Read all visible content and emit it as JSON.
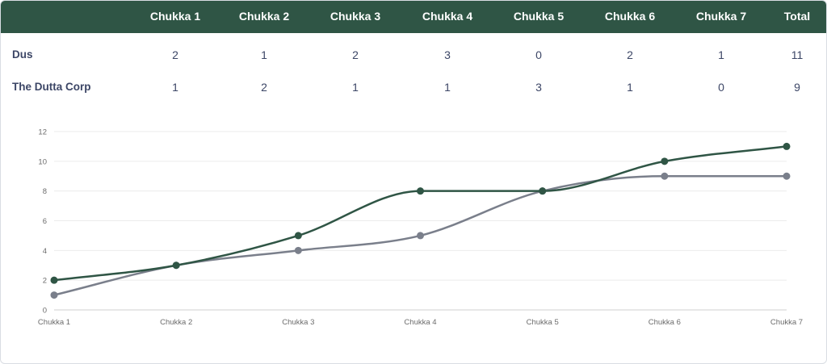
{
  "table": {
    "columns": [
      "",
      "Chukka 1",
      "Chukka 2",
      "Chukka 3",
      "Chukka 4",
      "Chukka 5",
      "Chukka 6",
      "Chukka 7",
      "Total"
    ],
    "rows": [
      {
        "team": "Dus",
        "scores": [
          "2",
          "1",
          "2",
          "3",
          "0",
          "2",
          "1"
        ],
        "total": "11"
      },
      {
        "team": "The Dutta Corp",
        "scores": [
          "1",
          "2",
          "1",
          "1",
          "3",
          "1",
          "0"
        ],
        "total": "9"
      }
    ]
  },
  "chart_data": {
    "type": "line",
    "categories": [
      "Chukka 1",
      "Chukka 2",
      "Chukka 3",
      "Chukka 4",
      "Chukka 5",
      "Chukka 6",
      "Chukka 7"
    ],
    "series": [
      {
        "values": [
          2,
          3,
          5,
          8,
          8,
          10,
          11
        ],
        "color": "#2f5545"
      },
      {
        "values": [
          1,
          3,
          4,
          5,
          8,
          9,
          9
        ],
        "color": "#7a7f8b"
      }
    ],
    "ylim": [
      0,
      12
    ],
    "yticks": [
      "0",
      "2",
      "4",
      "6",
      "8",
      "10",
      "12"
    ],
    "grid": true,
    "legend": "none"
  }
}
